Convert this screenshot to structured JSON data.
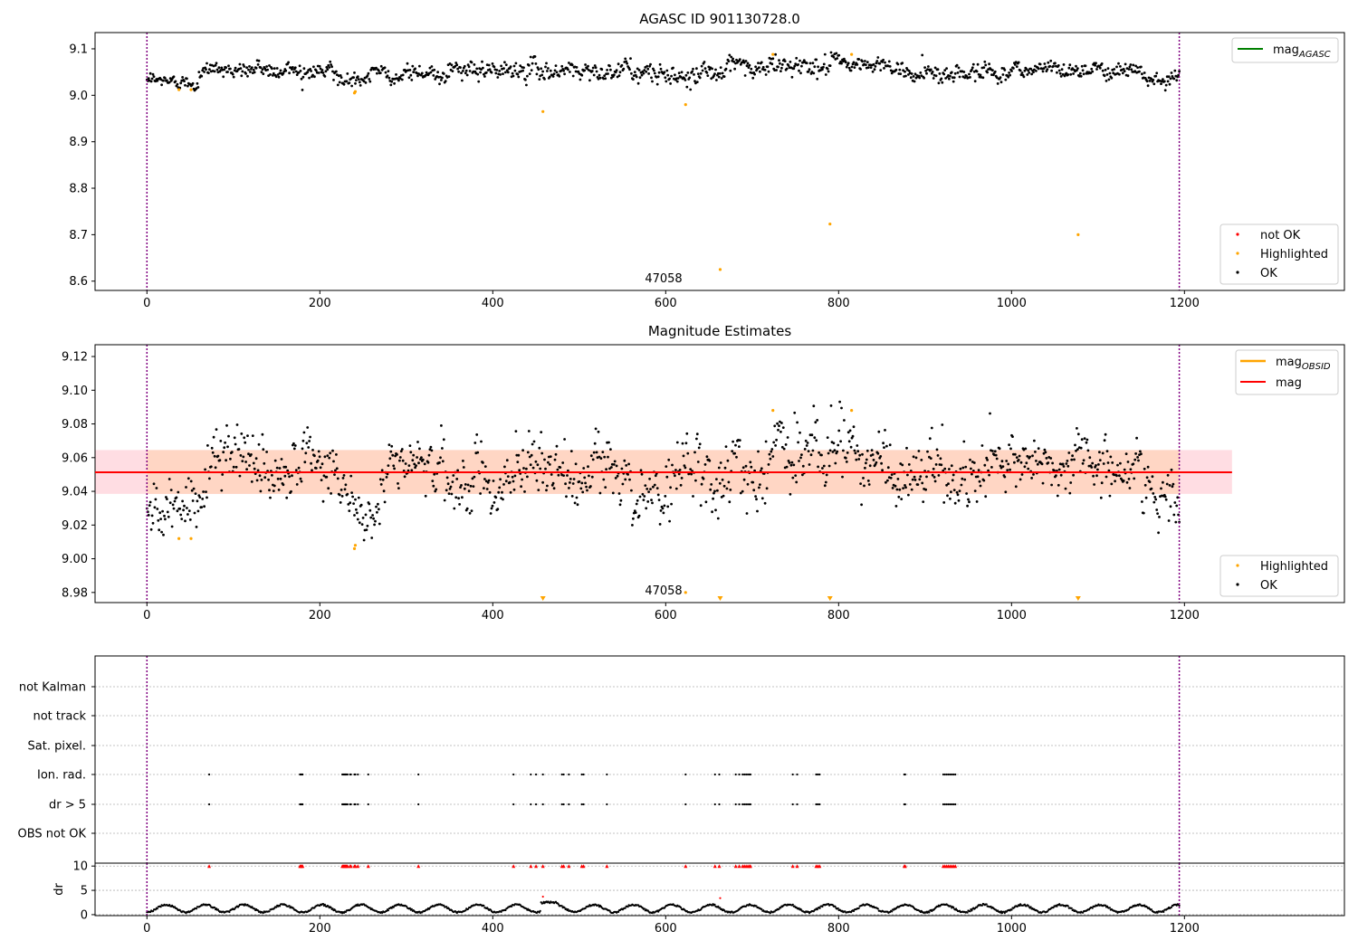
{
  "chart_data": [
    {
      "type": "scatter",
      "title": "AGASC ID 901130728.0",
      "xlim": [
        -60,
        1385
      ],
      "ylim": [
        8.58,
        9.135
      ],
      "xticks": [
        0,
        200,
        400,
        600,
        800,
        1000,
        1200
      ],
      "yticks": [
        8.6,
        8.7,
        8.8,
        8.9,
        9.0,
        9.1
      ],
      "ytick_labels": [
        "8.6",
        "8.7",
        "8.8",
        "8.9",
        "9.0",
        "9.1"
      ],
      "obsid_label": "47058",
      "obsid_label_x": 597,
      "vlines": [
        0,
        1194
      ],
      "ok_series": {
        "name": "OK",
        "n": 1190,
        "x_range": [
          0,
          1194
        ],
        "segments": [
          {
            "x": [
              0,
              60
            ],
            "y_mean": 9.03,
            "y_sd": 0.008
          },
          {
            "x": [
              60,
              220
            ],
            "y_mean": 9.055,
            "y_sd": 0.01
          },
          {
            "x": [
              220,
              260
            ],
            "y_mean": 9.03,
            "y_sd": 0.008
          },
          {
            "x": [
              260,
              420
            ],
            "y_mean": 9.05,
            "y_sd": 0.01
          },
          {
            "x": [
              420,
              560
            ],
            "y_mean": 9.055,
            "y_sd": 0.011
          },
          {
            "x": [
              560,
              640
            ],
            "y_mean": 9.045,
            "y_sd": 0.011
          },
          {
            "x": [
              640,
              720
            ],
            "y_mean": 9.055,
            "y_sd": 0.012
          },
          {
            "x": [
              720,
              860
            ],
            "y_mean": 9.065,
            "y_sd": 0.011
          },
          {
            "x": [
              860,
              1000
            ],
            "y_mean": 9.05,
            "y_sd": 0.011
          },
          {
            "x": [
              1000,
              1150
            ],
            "y_mean": 9.057,
            "y_sd": 0.009
          },
          {
            "x": [
              1150,
              1194
            ],
            "y_mean": 9.04,
            "y_sd": 0.008
          }
        ]
      },
      "highlighted": {
        "name": "Highlighted",
        "color": "#ffa500",
        "points": [
          [
            37,
            9.012
          ],
          [
            51,
            9.012
          ],
          [
            240,
            9.005
          ],
          [
            241,
            9.008
          ],
          [
            458,
            8.965
          ],
          [
            623,
            8.98
          ],
          [
            663,
            8.625
          ],
          [
            724,
            9.088
          ],
          [
            790,
            8.723
          ],
          [
            815,
            9.088
          ],
          [
            1077,
            8.7
          ]
        ]
      },
      "not_ok": {
        "name": "not OK",
        "color": "#ff0000",
        "points": []
      },
      "line_legend": [
        {
          "name": "mag",
          "sub": "AGASC",
          "color": "#008000"
        }
      ],
      "marker_legend": [
        {
          "name": "not OK",
          "color": "#ff0000"
        },
        {
          "name": "Highlighted",
          "color": "#ffa500"
        },
        {
          "name": "OK",
          "color": "#000000"
        }
      ]
    },
    {
      "type": "scatter",
      "title": "Magnitude Estimates",
      "xlim": [
        -60,
        1385
      ],
      "ylim": [
        8.974,
        9.127
      ],
      "xticks": [
        0,
        200,
        400,
        600,
        800,
        1000,
        1200
      ],
      "yticks": [
        8.98,
        9.0,
        9.02,
        9.04,
        9.06,
        9.08,
        9.1,
        9.12
      ],
      "ytick_labels": [
        "8.98",
        "9.00",
        "9.02",
        "9.04",
        "9.06",
        "9.08",
        "9.10",
        "9.12"
      ],
      "obsid_label": "47058",
      "obsid_label_x": 597,
      "vlines": [
        0,
        1194
      ],
      "mag": 9.0513,
      "mag_band": [
        9.0385,
        9.0645
      ],
      "mag_band_x": [
        -60,
        1255
      ],
      "ok_series": {
        "name": "OK",
        "n": 1190,
        "x_range": [
          0,
          1194
        ],
        "segments": [
          {
            "x": [
              0,
              70
            ],
            "y_mean": 9.03,
            "y_sd": 0.008
          },
          {
            "x": [
              70,
              220
            ],
            "y_mean": 9.055,
            "y_sd": 0.01
          },
          {
            "x": [
              220,
              270
            ],
            "y_mean": 9.032,
            "y_sd": 0.009
          },
          {
            "x": [
              270,
              330
            ],
            "y_mean": 9.055,
            "y_sd": 0.008
          },
          {
            "x": [
              330,
              420
            ],
            "y_mean": 9.042,
            "y_sd": 0.01
          },
          {
            "x": [
              420,
              560
            ],
            "y_mean": 9.052,
            "y_sd": 0.011
          },
          {
            "x": [
              560,
              600
            ],
            "y_mean": 9.04,
            "y_sd": 0.008
          },
          {
            "x": [
              600,
              720
            ],
            "y_mean": 9.055,
            "y_sd": 0.012
          },
          {
            "x": [
              720,
              860
            ],
            "y_mean": 9.065,
            "y_sd": 0.011
          },
          {
            "x": [
              860,
              1000
            ],
            "y_mean": 9.048,
            "y_sd": 0.011
          },
          {
            "x": [
              1000,
              1150
            ],
            "y_mean": 9.057,
            "y_sd": 0.009
          },
          {
            "x": [
              1150,
              1194
            ],
            "y_mean": 9.04,
            "y_sd": 0.009
          }
        ]
      },
      "highlighted": {
        "name": "Highlighted",
        "color": "#ffa500",
        "points": [
          [
            37,
            9.012
          ],
          [
            51,
            9.012
          ],
          [
            240,
            9.006
          ],
          [
            241,
            9.008
          ],
          [
            623,
            8.98
          ],
          [
            724,
            9.088
          ],
          [
            815,
            9.088
          ]
        ]
      },
      "below_range": {
        "color": "#ffa500",
        "x": [
          458,
          663,
          790,
          1077
        ]
      },
      "line_legend": [
        {
          "name": "mag",
          "sub": "OBSID",
          "color": "#ffa500"
        },
        {
          "name": "mag",
          "sub": "",
          "color": "#ff0000"
        }
      ],
      "marker_legend": [
        {
          "name": "Highlighted",
          "color": "#ffa500"
        },
        {
          "name": "OK",
          "color": "#000000"
        }
      ],
      "band_colors": {
        "outer": "#ffdde3",
        "inner": "#ffd6c4",
        "line": "#ff0000"
      }
    },
    {
      "type": "scatter",
      "title": "",
      "xlim": [
        -60,
        1385
      ],
      "vlines": [
        0,
        1194
      ],
      "flag_labels": [
        "not Kalman",
        "not track",
        "Sat. pixel.",
        "Ion. rad.",
        "dr > 5",
        "OBS not OK"
      ],
      "flags": {
        "Ion. rad.": [
          72,
          177,
          178,
          179,
          180,
          226,
          227,
          228,
          229,
          230,
          231,
          232,
          235,
          236,
          240,
          241,
          244,
          256,
          314,
          424,
          444,
          450,
          458,
          480,
          482,
          488,
          503,
          505,
          532,
          623,
          657,
          662,
          681,
          685,
          689,
          691,
          693,
          695,
          697,
          698,
          747,
          752,
          774,
          776,
          778,
          876,
          877,
          921,
          923,
          925,
          927,
          929,
          931,
          933,
          935
        ],
        "dr > 5": [
          72,
          177,
          178,
          179,
          180,
          226,
          227,
          228,
          229,
          230,
          231,
          232,
          235,
          236,
          240,
          241,
          244,
          256,
          314,
          424,
          444,
          450,
          458,
          480,
          482,
          488,
          503,
          505,
          532,
          623,
          657,
          662,
          681,
          685,
          689,
          691,
          693,
          695,
          697,
          698,
          747,
          752,
          774,
          776,
          778,
          876,
          877,
          921,
          923,
          925,
          927,
          929,
          931,
          933,
          935
        ]
      }
    },
    {
      "type": "scatter",
      "title": "",
      "xlim": [
        -60,
        1385
      ],
      "ylim": [
        -0.2,
        10.6
      ],
      "ylabel": "dr",
      "xticks": [
        0,
        200,
        400,
        600,
        800,
        1000,
        1200
      ],
      "yticks": [
        0,
        5,
        10
      ],
      "ytick_labels": [
        "0",
        "5",
        "10"
      ],
      "vlines": [
        0,
        1194
      ],
      "dr_clipped_value": 10,
      "dr_points_extra": [
        [
          458,
          3.7
        ],
        [
          663,
          3.4
        ]
      ],
      "dr_segment_profile": {
        "period": 45,
        "low": 0.3,
        "high": 2.4
      },
      "colors": {
        "clipped": "#ff0000",
        "ok": "#000000"
      }
    }
  ]
}
